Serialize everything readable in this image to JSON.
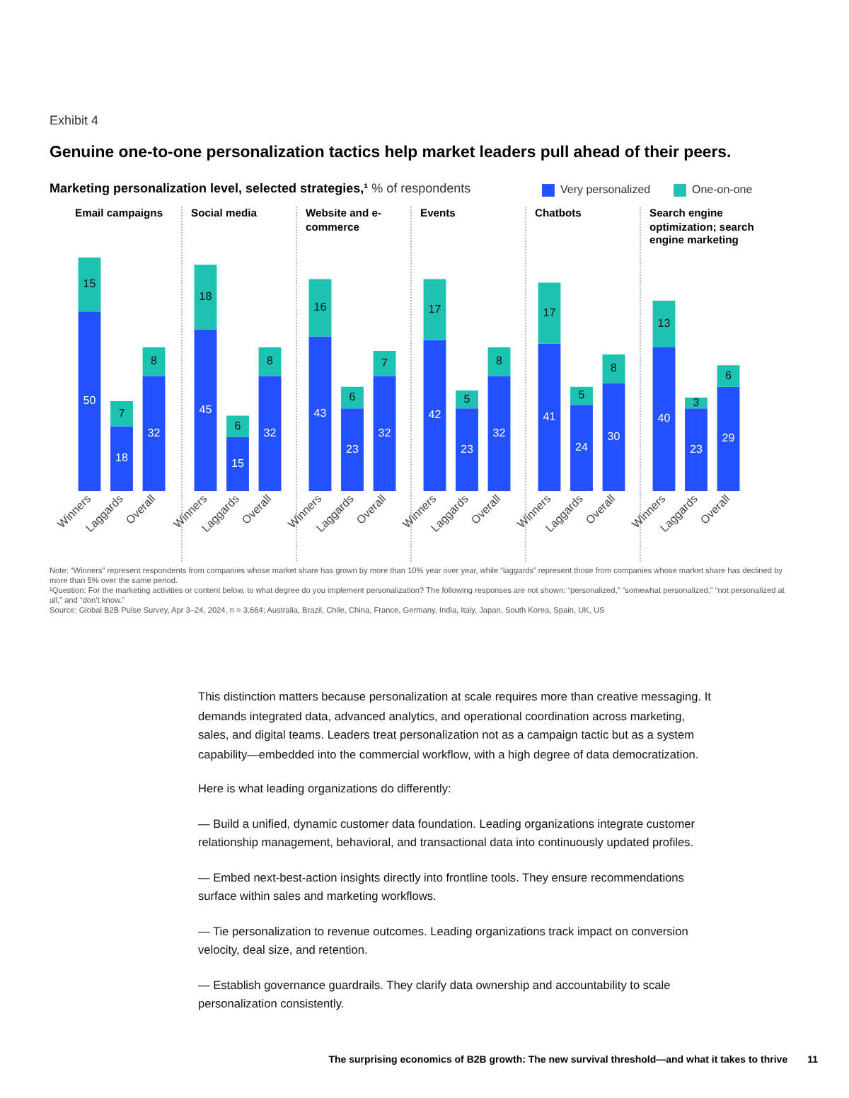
{
  "chart_data": [
    {
      "type": "other",
      "title": "Genuine one-to-one personalization tactics help market leaders pull ahead of their peers.",
      "subtitle": "Marketing personalization level, selected strategies,¹ % of respondents",
      "annotations": [
        "Exhibit 4",
        "Note: “Winners” represent respondents from companies whose market share has grown by more than 10% year over year, while “laggards” represent those from companies whose market share has declined by more than 5% over the same period.",
        "¹Question: For the marketing activities or content below, to what degree do you implement personalization? The following responses are not shown: “personalized,” “somewhat personalized,” “not personalized at all,” and “don’t know.”",
        "Source: Global B2B Pulse Survey, Apr 3–24, 2024, n = 3,664; Australia, Brazil, Chile, China, France, Germany, India, Italy, Japan, South Korea, Spain, UK, US",
        "This distinction matters because personalization at scale requires more than creative messaging. It demands integrated data, advanced analytics, and operational coordination across marketing, sales, and digital teams. Leaders treat personalization not as a campaign tactic but as a system capability—embedded into the commercial workflow, with a high degree of data democratization.",
        "Here is what leading organizations do differently:",
        "— Build a unified, dynamic customer data foundation. Leading organizations integrate customer relationship management, behavioral, and transactional data into continuously updated profiles.",
        "— Embed next-best-action insights directly into frontline tools. They ensure recommendations surface within sales and marketing workflows.",
        "— Tie personalization to revenue outcomes. Leading organizations track impact on conversion velocity, deal size, and retention.",
        "— Establish governance guardrails. They clarify data ownership and accountability to scale personalization consistently.",
        "The surprising economics of B2B growth: The new survival threshold—and what it takes to thrive",
        "11"
      ]
    },
    {
      "type": "bar",
      "title": "Email campaigns",
      "stacked": true,
      "data_labels": true,
      "legend": "top right",
      "categories": [
        "Winners",
        "Laggards",
        "Overall"
      ],
      "series": [
        {
          "name": "Very personalized",
          "color": "#2251ff",
          "values": [
            50,
            18,
            32
          ]
        },
        {
          "name": "One-on-one",
          "color": "#1ec2b0",
          "values": [
            15,
            7,
            8
          ]
        }
      ]
    },
    {
      "type": "bar",
      "title": "Social media",
      "stacked": true,
      "data_labels": true,
      "categories": [
        "Winners",
        "Laggards",
        "Overall"
      ],
      "series": [
        {
          "color": "#2251ff",
          "values": [
            45,
            15,
            32
          ]
        },
        {
          "color": "#1ec2b0",
          "values": [
            18,
            6,
            8
          ]
        }
      ]
    },
    {
      "type": "bar",
      "title": "Website and e-commerce",
      "stacked": true,
      "data_labels": true,
      "categories": [
        "Winners",
        "Laggards",
        "Overall"
      ],
      "series": [
        {
          "color": "#2251ff",
          "values": [
            43,
            23,
            32
          ]
        },
        {
          "color": "#1ec2b0",
          "values": [
            16,
            6,
            7
          ]
        }
      ]
    },
    {
      "type": "bar",
      "title": "Events",
      "stacked": true,
      "data_labels": true,
      "categories": [
        "Winners",
        "Laggards",
        "Overall"
      ],
      "series": [
        {
          "color": "#2251ff",
          "values": [
            42,
            23,
            32
          ]
        },
        {
          "color": "#1ec2b0",
          "values": [
            17,
            5,
            8
          ]
        }
      ]
    },
    {
      "type": "bar",
      "title": "Chatbots",
      "stacked": true,
      "data_labels": true,
      "categories": [
        "Winners",
        "Laggards",
        "Overall"
      ],
      "series": [
        {
          "color": "#2251ff",
          "values": [
            41,
            24,
            30
          ]
        },
        {
          "color": "#1ec2b0",
          "values": [
            17,
            5,
            8
          ]
        }
      ]
    },
    {
      "type": "bar",
      "title": "Search engine optimization; search engine marketing",
      "stacked": true,
      "data_labels": true,
      "categories": [
        "Winners",
        "Laggards",
        "Overall"
      ],
      "series": [
        {
          "color": "#2251ff",
          "values": [
            40,
            23,
            29
          ]
        },
        {
          "color": "#1ec2b0",
          "values": [
            13,
            3,
            6
          ]
        }
      ]
    }
  ]
}
